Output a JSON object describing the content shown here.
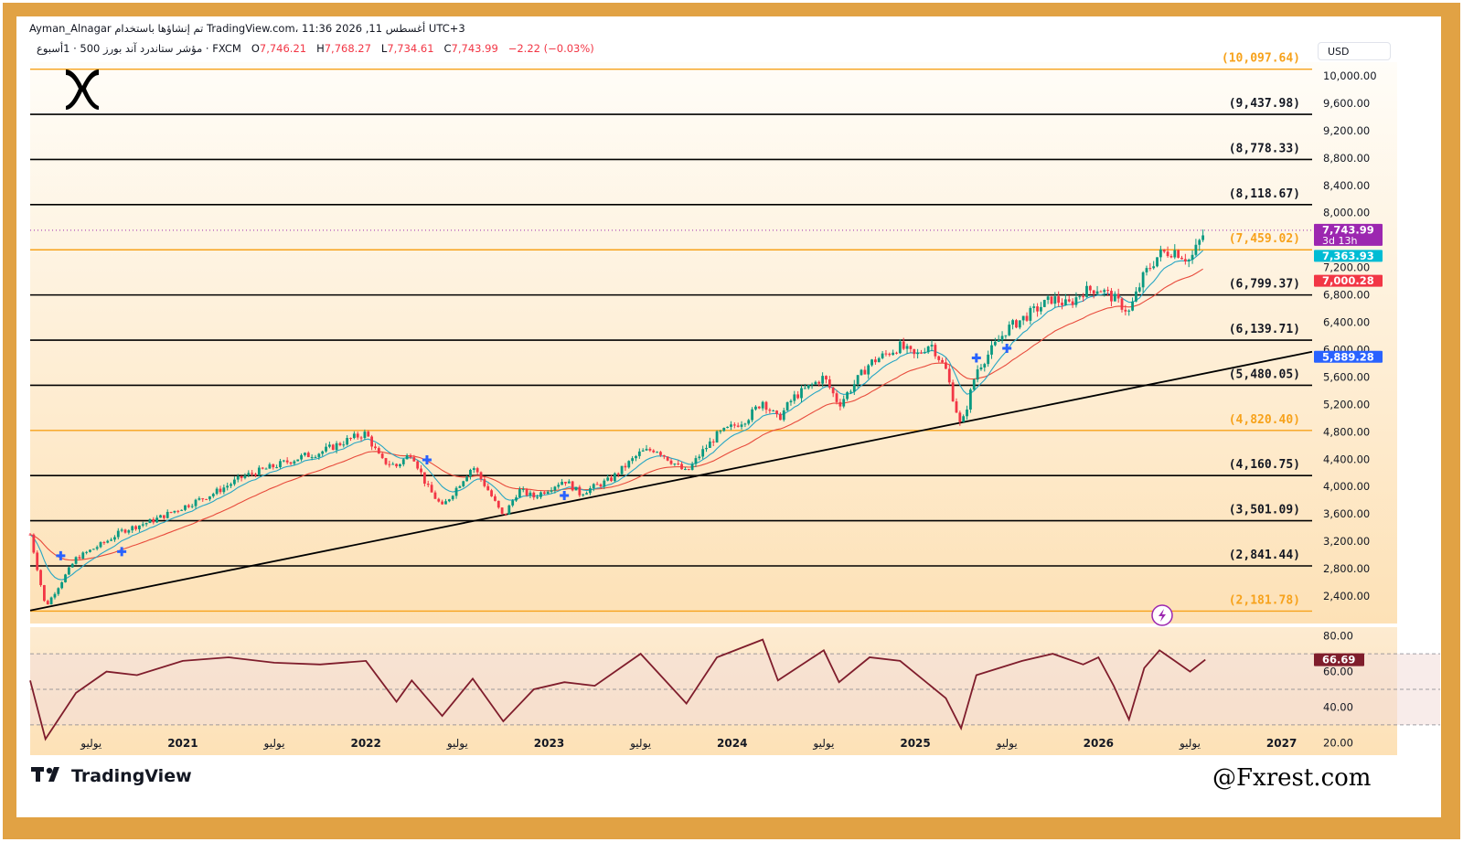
{
  "header": {
    "line1": "Ayman_Alnagar تم إنشاؤها باستخدام TradingView.com، 11:36 2026 ,11 أغسطس UTC+3",
    "symbol_line": "مؤشر ستاندرد آند بورز 500 · 1أسبوع · FXCM",
    "open_label": "O",
    "open_value": "7,746.21",
    "high_label": "H",
    "high_value": "7,768.27",
    "low_label": "L",
    "low_value": "7,734.61",
    "close_label": "C",
    "close_value": "7,743.99",
    "change": "−2.22 (−0.03%)"
  },
  "currency": "USD",
  "brand": {
    "tv_name": "TradingView",
    "watermark": "@Fxrest.com",
    "logo_icon": "x-logo-icon"
  },
  "colors": {
    "frame": "#e1a244",
    "orange_level": "#f7a21b",
    "black_level": "#000000",
    "up": "#089981",
    "down": "#f23645",
    "ema_fast": "#26a6c4",
    "ema_slow": "#e84b3c",
    "rsi": "#7f1d2c",
    "price_tag": "#9c27b0",
    "fast_tag": "#00bcd4",
    "slow_tag": "#f23645",
    "trend_tag": "#2962ff"
  },
  "chart_data": {
    "type": "candlestick",
    "symbol": "مؤشر ستاندرد آند بورز 500",
    "timeframe": "1أسبوع",
    "ylim": [
      2000,
      10200
    ],
    "y_ticks": [
      "10,000.00",
      "9,600.00",
      "9,200.00",
      "8,800.00",
      "8,400.00",
      "8,000.00",
      "7,600.00",
      "7,200.00",
      "6,800.00",
      "6,400.00",
      "6,000.00",
      "5,600.00",
      "5,200.00",
      "4,800.00",
      "4,400.00",
      "4,000.00",
      "3,600.00",
      "3,200.00",
      "2,800.00",
      "2,400.00"
    ],
    "x_ticks": [
      "يوليو",
      "2021",
      "يوليو",
      "2022",
      "يوليو",
      "2023",
      "يوليو",
      "2024",
      "يوليو",
      "2025",
      "يوليو",
      "2026",
      "يوليو",
      "2027"
    ],
    "x_range": [
      "2020-03",
      "2027-03"
    ],
    "levels": [
      {
        "value": 10097.64,
        "label": "(10,097.64)",
        "color": "orange"
      },
      {
        "value": 9437.98,
        "label": "(9,437.98)",
        "color": "black"
      },
      {
        "value": 8778.33,
        "label": "(8,778.33)",
        "color": "black"
      },
      {
        "value": 8118.67,
        "label": "(8,118.67)",
        "color": "black"
      },
      {
        "value": 7459.02,
        "label": "(7,459.02)",
        "color": "orange"
      },
      {
        "value": 6799.37,
        "label": "(6,799.37)",
        "color": "black"
      },
      {
        "value": 6139.71,
        "label": "(6,139.71)",
        "color": "black"
      },
      {
        "value": 5480.05,
        "label": "(5,480.05)",
        "color": "black"
      },
      {
        "value": 4820.4,
        "label": "(4,820.40)",
        "color": "orange"
      },
      {
        "value": 4160.75,
        "label": "(4,160.75)",
        "color": "black"
      },
      {
        "value": 3501.09,
        "label": "(3,501.09)",
        "color": "black"
      },
      {
        "value": 2841.44,
        "label": "(2,841.44)",
        "color": "black"
      },
      {
        "value": 2181.78,
        "label": "(2,181.78)",
        "color": "orange"
      }
    ],
    "price_tags": [
      {
        "value": 7743.99,
        "label": "7,743.99",
        "sublabel": "3d 13h",
        "color": "#9c27b0"
      },
      {
        "value": 7363.93,
        "label": "7,363.93",
        "color": "#00bcd4"
      },
      {
        "value": 7000.28,
        "label": "7,000.28",
        "color": "#f23645"
      },
      {
        "value": 5889.28,
        "label": "5,889.28",
        "color": "#2962ff"
      }
    ],
    "trendline": [
      {
        "date": "2020-03",
        "value": 2190
      },
      {
        "date": "2027-03",
        "value": 5970
      }
    ],
    "price_path": [
      {
        "date": "2020-03",
        "value": 3300
      },
      {
        "date": "2020-04",
        "value": 2240
      },
      {
        "date": "2020-06",
        "value": 2950
      },
      {
        "date": "2020-08",
        "value": 3200
      },
      {
        "date": "2020-09",
        "value": 3350
      },
      {
        "date": "2020-11",
        "value": 3500
      },
      {
        "date": "2021-01",
        "value": 3700
      },
      {
        "date": "2021-03",
        "value": 3900
      },
      {
        "date": "2021-05",
        "value": 4150
      },
      {
        "date": "2021-07",
        "value": 4300
      },
      {
        "date": "2021-09",
        "value": 4450
      },
      {
        "date": "2021-10",
        "value": 4500
      },
      {
        "date": "2021-12",
        "value": 4700
      },
      {
        "date": "2022-01",
        "value": 4780
      },
      {
        "date": "2022-02",
        "value": 4380
      },
      {
        "date": "2022-03",
        "value": 4300
      },
      {
        "date": "2022-04",
        "value": 4500
      },
      {
        "date": "2022-05",
        "value": 4000
      },
      {
        "date": "2022-06",
        "value": 3700
      },
      {
        "date": "2022-08",
        "value": 4300
      },
      {
        "date": "2022-09",
        "value": 3950
      },
      {
        "date": "2022-10",
        "value": 3550
      },
      {
        "date": "2022-11",
        "value": 3950
      },
      {
        "date": "2022-12",
        "value": 3850
      },
      {
        "date": "2023-02",
        "value": 4100
      },
      {
        "date": "2023-03",
        "value": 3900
      },
      {
        "date": "2023-05",
        "value": 4100
      },
      {
        "date": "2023-07",
        "value": 4500
      },
      {
        "date": "2023-08",
        "value": 4550
      },
      {
        "date": "2023-10",
        "value": 4200
      },
      {
        "date": "2023-11",
        "value": 4500
      },
      {
        "date": "2023-12",
        "value": 4750
      },
      {
        "date": "2024-02",
        "value": 5000
      },
      {
        "date": "2024-03",
        "value": 5250
      },
      {
        "date": "2024-04",
        "value": 4980
      },
      {
        "date": "2024-05",
        "value": 5300
      },
      {
        "date": "2024-07",
        "value": 5600
      },
      {
        "date": "2024-08",
        "value": 5200
      },
      {
        "date": "2024-10",
        "value": 5800
      },
      {
        "date": "2024-12",
        "value": 6050
      },
      {
        "date": "2025-01",
        "value": 5900
      },
      {
        "date": "2025-02",
        "value": 6100
      },
      {
        "date": "2025-03",
        "value": 5700
      },
      {
        "date": "2025-04",
        "value": 4850
      },
      {
        "date": "2025-05",
        "value": 5700
      },
      {
        "date": "2025-06",
        "value": 6000
      },
      {
        "date": "2025-07",
        "value": 6300
      },
      {
        "date": "2025-08",
        "value": 6450
      },
      {
        "date": "2025-10",
        "value": 6750
      },
      {
        "date": "2025-11",
        "value": 6650
      },
      {
        "date": "2025-12",
        "value": 6850
      },
      {
        "date": "2026-01",
        "value": 6900
      },
      {
        "date": "2026-02",
        "value": 6750
      },
      {
        "date": "2026-03",
        "value": 6550
      },
      {
        "date": "2026-04",
        "value": 7100
      },
      {
        "date": "2026-05",
        "value": 7400
      },
      {
        "date": "2026-06",
        "value": 7450
      },
      {
        "date": "2026-07",
        "value": 7300
      },
      {
        "date": "2026-08",
        "value": 7744
      }
    ],
    "markers": [
      {
        "date": "2020-05",
        "value": 2990
      },
      {
        "date": "2020-09",
        "value": 3050
      },
      {
        "date": "2022-05",
        "value": 4390
      },
      {
        "date": "2023-02",
        "value": 3870
      },
      {
        "date": "2025-05",
        "value": 5880
      },
      {
        "date": "2025-07",
        "value": 6020
      }
    ],
    "rsi": {
      "y_ticks": [
        "80.00",
        "60.00",
        "40.00",
        "20.00"
      ],
      "ylim": [
        15,
        85
      ],
      "levels": [
        70,
        50,
        30
      ],
      "last_value": "66.69",
      "points": [
        {
          "date": "2020-03",
          "value": 55
        },
        {
          "date": "2020-04",
          "value": 22
        },
        {
          "date": "2020-06",
          "value": 48
        },
        {
          "date": "2020-08",
          "value": 60
        },
        {
          "date": "2020-10",
          "value": 58
        },
        {
          "date": "2021-01",
          "value": 66
        },
        {
          "date": "2021-04",
          "value": 68
        },
        {
          "date": "2021-07",
          "value": 65
        },
        {
          "date": "2021-10",
          "value": 64
        },
        {
          "date": "2022-01",
          "value": 66
        },
        {
          "date": "2022-03",
          "value": 43
        },
        {
          "date": "2022-04",
          "value": 55
        },
        {
          "date": "2022-06",
          "value": 35
        },
        {
          "date": "2022-08",
          "value": 56
        },
        {
          "date": "2022-10",
          "value": 32
        },
        {
          "date": "2022-12",
          "value": 50
        },
        {
          "date": "2023-02",
          "value": 54
        },
        {
          "date": "2023-04",
          "value": 52
        },
        {
          "date": "2023-07",
          "value": 70
        },
        {
          "date": "2023-10",
          "value": 42
        },
        {
          "date": "2023-12",
          "value": 68
        },
        {
          "date": "2024-03",
          "value": 78
        },
        {
          "date": "2024-04",
          "value": 55
        },
        {
          "date": "2024-07",
          "value": 72
        },
        {
          "date": "2024-08",
          "value": 54
        },
        {
          "date": "2024-10",
          "value": 68
        },
        {
          "date": "2024-12",
          "value": 66
        },
        {
          "date": "2025-03",
          "value": 45
        },
        {
          "date": "2025-04",
          "value": 28
        },
        {
          "date": "2025-05",
          "value": 58
        },
        {
          "date": "2025-08",
          "value": 66
        },
        {
          "date": "2025-10",
          "value": 70
        },
        {
          "date": "2025-12",
          "value": 64
        },
        {
          "date": "2026-01",
          "value": 68
        },
        {
          "date": "2026-02",
          "value": 52
        },
        {
          "date": "2026-03",
          "value": 33
        },
        {
          "date": "2026-04",
          "value": 62
        },
        {
          "date": "2026-05",
          "value": 72
        },
        {
          "date": "2026-06",
          "value": 66
        },
        {
          "date": "2026-07",
          "value": 60
        },
        {
          "date": "2026-08",
          "value": 66.69
        }
      ]
    }
  }
}
